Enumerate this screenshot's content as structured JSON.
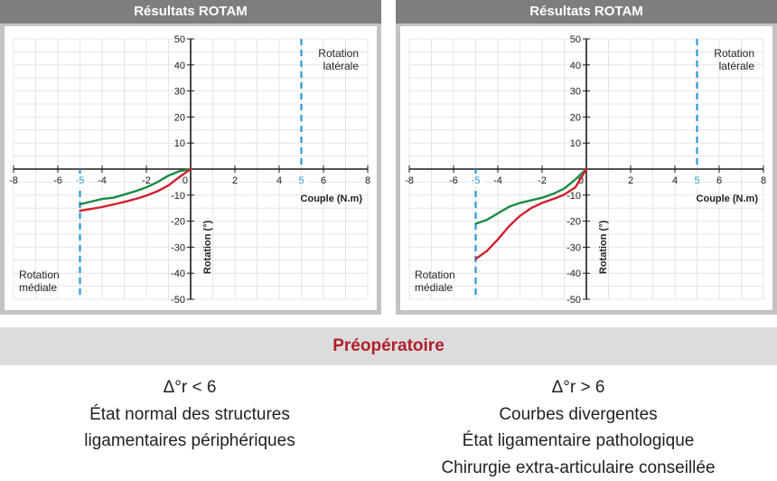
{
  "chart_data": [
    {
      "type": "line",
      "title": "Résultats ROTAM",
      "xlabel": "Couple (N.m)",
      "ylabel": "Rotation (°)",
      "xlim": [
        -8,
        8
      ],
      "ylim": [
        -50,
        50
      ],
      "xticks": [
        -8,
        -6,
        -4,
        -2,
        0,
        2,
        4,
        6,
        8
      ],
      "yticks": [
        50,
        40,
        30,
        20,
        10,
        0,
        -10,
        -20,
        -30,
        -40,
        -50
      ],
      "grid": true,
      "markers": [
        {
          "x": -5,
          "label": "-5",
          "annotation": [
            "Rotation",
            "médiale"
          ]
        },
        {
          "x": 5,
          "label": "5",
          "annotation": [
            "Rotation",
            "latérale"
          ]
        }
      ],
      "series": [
        {
          "color": "#1a8a45",
          "x": [
            -5,
            -4.5,
            -4,
            -3.5,
            -3,
            -2.5,
            -2,
            -1.5,
            -1,
            -0.5,
            0
          ],
          "y": [
            -13.5,
            -12.5,
            -11.5,
            -11,
            -9.8,
            -8.5,
            -7,
            -5,
            -2.5,
            -0.8,
            0
          ]
        },
        {
          "color": "#d0202e",
          "x": [
            -5,
            -4.5,
            -4,
            -3.5,
            -3,
            -2.5,
            -2,
            -1.5,
            -1,
            -0.5,
            0
          ],
          "y": [
            -16,
            -15.3,
            -14.6,
            -13.6,
            -12.6,
            -11.5,
            -10.2,
            -8.5,
            -6.3,
            -3,
            0
          ]
        }
      ]
    },
    {
      "type": "line",
      "title": "Résultats ROTAM",
      "xlabel": "Couple (N.m)",
      "ylabel": "Rotation (°)",
      "xlim": [
        -8,
        8
      ],
      "ylim": [
        -50,
        50
      ],
      "xticks": [
        -8,
        -6,
        -4,
        -2,
        0,
        2,
        4,
        6,
        8
      ],
      "yticks": [
        50,
        40,
        30,
        20,
        10,
        0,
        -10,
        -20,
        -30,
        -40,
        -50
      ],
      "grid": true,
      "markers": [
        {
          "x": -5,
          "label": "-5",
          "annotation": [
            "Rotation",
            "médiale"
          ]
        },
        {
          "x": 5,
          "label": "5",
          "annotation": [
            "Rotation",
            "latérale"
          ]
        }
      ],
      "series": [
        {
          "color": "#1a8a45",
          "x": [
            -5,
            -4.5,
            -4,
            -3.5,
            -3,
            -2.5,
            -2,
            -1.5,
            -1,
            -0.5,
            0
          ],
          "y": [
            -21,
            -19.5,
            -17,
            -14.5,
            -13,
            -12,
            -11,
            -9.5,
            -7.5,
            -4,
            0
          ]
        },
        {
          "color": "#d0202e",
          "x": [
            -5,
            -4.5,
            -4,
            -3.5,
            -3,
            -2.5,
            -2,
            -1.5,
            -1,
            -0.5,
            0
          ],
          "y": [
            -34.5,
            -31.5,
            -27,
            -22,
            -18,
            -15,
            -13,
            -11.5,
            -9.8,
            -7,
            0
          ]
        }
      ]
    }
  ],
  "band": {
    "title": "Préopératoire"
  },
  "captions": {
    "left": [
      "Δ°r < 6",
      "État normal des structures",
      "ligamentaires périphériques"
    ],
    "right": [
      "Δ°r > 6",
      "Courbes divergentes",
      "État ligamentaire pathologique",
      "Chirurgie extra-articulaire conseillée"
    ]
  }
}
